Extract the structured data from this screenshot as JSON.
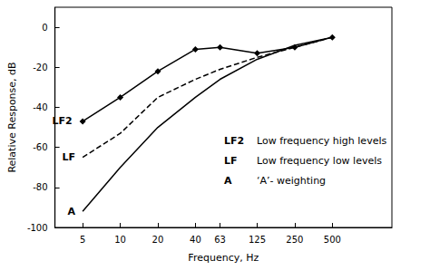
{
  "chart_data": {
    "type": "line",
    "x_label": "Frequency, Hz",
    "y_label": "Relative Response, dB",
    "x": [
      5,
      10,
      20,
      40,
      63,
      125,
      250,
      500
    ],
    "series": [
      {
        "name": "LF2",
        "description": "Low frequency high levels",
        "color": "#000000",
        "marker": "diamond",
        "line_style": "solid",
        "values": [
          -47,
          -35,
          -22,
          -11,
          -10,
          -13,
          -10,
          -5
        ]
      },
      {
        "name": "LF",
        "description": "Low frequency low levels",
        "color": "#000000",
        "marker": "none",
        "line_style": "dashed",
        "values": [
          -65,
          -53,
          -35,
          -26,
          -21,
          -15,
          -10,
          -5
        ]
      },
      {
        "name": "A",
        "description": "‘A’- weighting",
        "color": "#000000",
        "marker": "none",
        "line_style": "solid",
        "values": [
          -92,
          -70,
          -50,
          -35,
          -26,
          -16,
          -9,
          -5
        ]
      }
    ],
    "log": "x",
    "xlim": [
      3,
      1500
    ],
    "xticks": [
      5,
      10,
      20,
      40,
      63,
      125,
      250,
      500
    ],
    "ylim": [
      -100,
      10
    ],
    "yticks": [
      -100,
      -80,
      -60,
      -40,
      -20,
      0
    ],
    "grid": false
  }
}
